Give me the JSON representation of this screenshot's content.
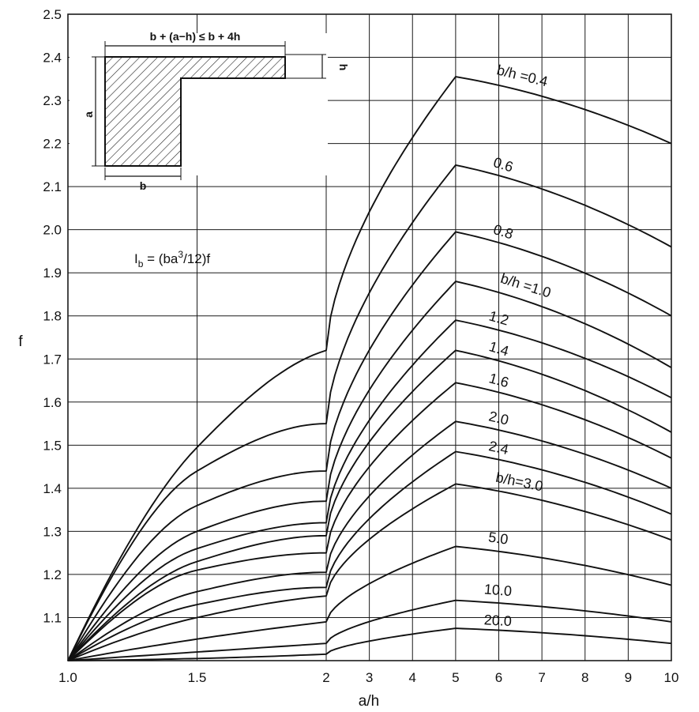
{
  "chart_data": {
    "type": "line",
    "xlabel": "a/h",
    "ylabel": "f",
    "xlim": [
      1.0,
      10
    ],
    "ylim": [
      1.0,
      2.5
    ],
    "x_axis_note": "x axis has two linear segments: 1.0 to 2 (fine) and 2 to 10 (compressed)",
    "x_ticks": [
      "1.0",
      "1.5",
      "2",
      "3",
      "4",
      "5",
      "6",
      "7",
      "8",
      "9",
      "10"
    ],
    "y_ticks": [
      "1.1",
      "1.2",
      "1.3",
      "1.4",
      "1.5",
      "1.6",
      "1.7",
      "1.8",
      "1.9",
      "2.0",
      "2.1",
      "2.2",
      "2.3",
      "2.4",
      "2.5"
    ],
    "formula": {
      "pre": "I",
      "sub": "b",
      "mid": " = (ba",
      "sup": "3",
      "post": "/12)f"
    },
    "inset": {
      "top_label": "b + (a−h) ≤ b + 4h",
      "a_label": "a",
      "b_label": "b",
      "h_label": "h"
    },
    "x": [
      1.0,
      1.5,
      2,
      5,
      10
    ],
    "series": [
      {
        "name": "b/h =0.4",
        "label": "b/h =0.4",
        "values": [
          1.0,
          1.495,
          1.72,
          2.355,
          2.2
        ]
      },
      {
        "name": "0.6",
        "label": "0.6",
        "values": [
          1.0,
          1.44,
          1.55,
          2.15,
          1.96
        ]
      },
      {
        "name": "0.8",
        "label": "0.8",
        "values": [
          1.0,
          1.36,
          1.44,
          1.995,
          1.8
        ]
      },
      {
        "name": "b/h =1.0",
        "label": "b/h =1.0",
        "values": [
          1.0,
          1.3,
          1.37,
          1.88,
          1.68
        ]
      },
      {
        "name": "1.2",
        "label": "1.2",
        "values": [
          1.0,
          1.26,
          1.32,
          1.79,
          1.61
        ]
      },
      {
        "name": "1.4",
        "label": "1.4",
        "values": [
          1.0,
          1.23,
          1.29,
          1.72,
          1.53
        ]
      },
      {
        "name": "1.6",
        "label": "1.6",
        "values": [
          1.0,
          1.21,
          1.25,
          1.645,
          1.47
        ]
      },
      {
        "name": "2.0",
        "label": "2.0",
        "values": [
          1.0,
          1.16,
          1.205,
          1.555,
          1.4
        ]
      },
      {
        "name": "2.4",
        "label": "2.4",
        "values": [
          1.0,
          1.13,
          1.17,
          1.485,
          1.34
        ]
      },
      {
        "name": "b/h=3.0",
        "label": "b/h=3.0",
        "values": [
          1.0,
          1.1,
          1.15,
          1.41,
          1.28
        ]
      },
      {
        "name": "5.0",
        "label": "5.0",
        "values": [
          1.0,
          1.05,
          1.09,
          1.265,
          1.175
        ]
      },
      {
        "name": "10.0",
        "label": "10.0",
        "values": [
          1.0,
          1.02,
          1.04,
          1.14,
          1.09
        ]
      },
      {
        "name": "20.0",
        "label": "20.0",
        "values": [
          1.0,
          1.005,
          1.015,
          1.075,
          1.04
        ]
      }
    ]
  }
}
